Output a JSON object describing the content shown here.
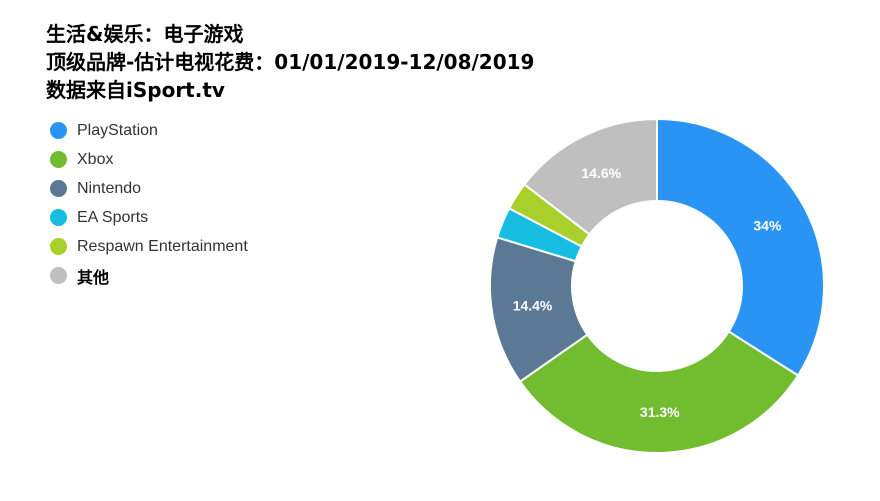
{
  "titles": {
    "line1": "生活&娱乐：电子游戏",
    "line2": "顶级品牌-估计电视花费：01/01/2019-12/08/2019",
    "line3": "数据来自iSport.tv"
  },
  "chart_data": {
    "type": "pie",
    "donut": true,
    "categories": [
      "PlayStation",
      "Xbox",
      "Nintendo",
      "EA Sports",
      "Respawn Entertainment",
      "其他"
    ],
    "values": [
      34,
      31.3,
      14.4,
      3,
      2.7,
      14.6
    ],
    "labels": [
      "34%",
      "31.3%",
      "14.4%",
      "",
      "",
      "14.6%"
    ],
    "colors": [
      "#2a94f4",
      "#72bd2f",
      "#5b7894",
      "#16bde0",
      "#a8cf2a",
      "#bfbfbf"
    ],
    "legend_position": "left"
  }
}
